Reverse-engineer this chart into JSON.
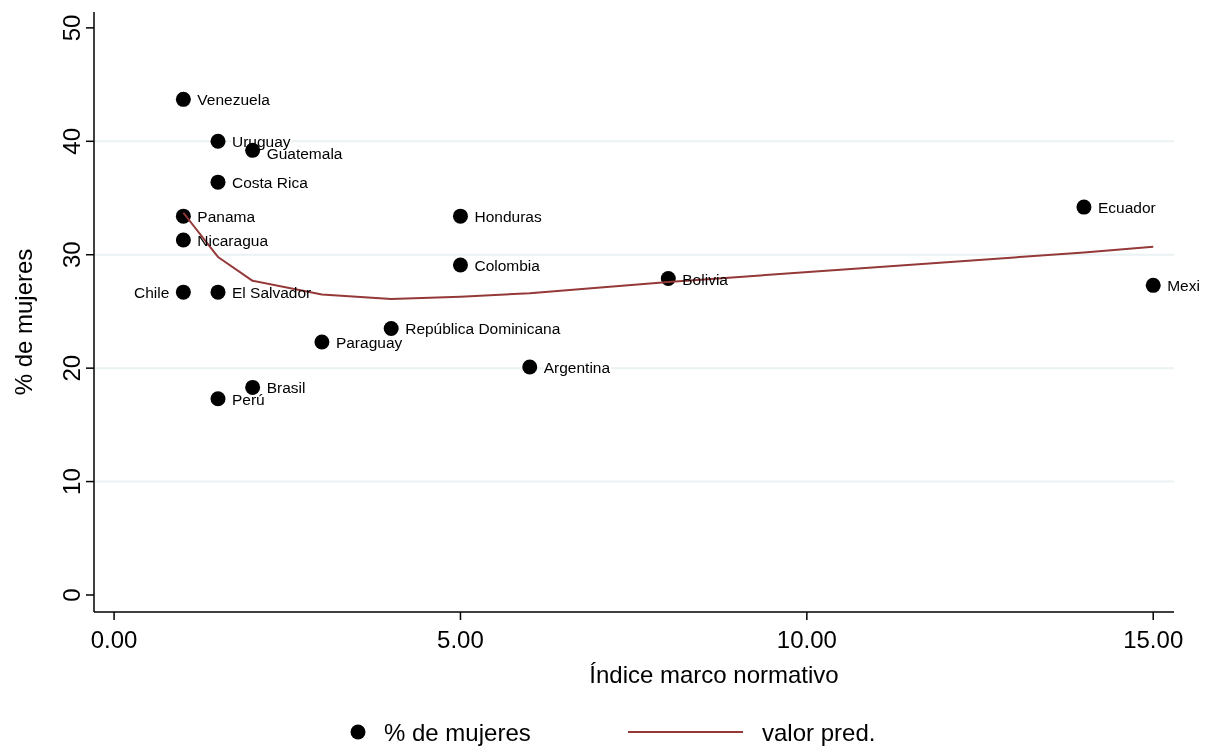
{
  "chart_data": {
    "type": "scatter",
    "xlabel": "Índice marco normativo",
    "ylabel": "% de mujeres",
    "xlim": [
      -0.29,
      15.3
    ],
    "ylim": [
      -1.5,
      51.4
    ],
    "xticks": [
      {
        "value": 0,
        "label": "0.00"
      },
      {
        "value": 5,
        "label": "5.00"
      },
      {
        "value": 10,
        "label": "10.00"
      },
      {
        "value": 15,
        "label": "15.00"
      }
    ],
    "yticks": [
      0,
      10,
      20,
      30,
      40,
      50
    ],
    "grid": "y",
    "legend": "bottom",
    "series": [
      {
        "name": "% de mujeres",
        "color": "#000000",
        "marker": "circle",
        "x": [
          1,
          1.5,
          2,
          1.5,
          1,
          1,
          1,
          1.5,
          3,
          4,
          6,
          2,
          1.5,
          5,
          5,
          8,
          14,
          15
        ],
        "values": [
          43.7,
          40.0,
          39.2,
          36.4,
          33.4,
          31.3,
          26.7,
          26.7,
          22.3,
          23.5,
          20.1,
          18.3,
          17.3,
          33.4,
          29.1,
          27.9,
          34.2,
          27.3
        ]
      },
      {
        "name": "valor pred.",
        "type": "line",
        "color": "#943838",
        "line_style": "solid",
        "x": [
          1,
          1.5,
          2,
          3,
          4,
          5,
          6,
          8,
          14,
          15
        ],
        "values": [
          33.7,
          29.8,
          27.7,
          26.5,
          26.1,
          26.3,
          26.6,
          27.6,
          30.2,
          30.7
        ]
      }
    ],
    "annotations": [
      {
        "text": "Venezuela",
        "x": 1,
        "y": 43.7
      },
      {
        "text": "Uruguay",
        "x": 1.5,
        "y": 40.0
      },
      {
        "text": "Guatemala",
        "x": 2,
        "y": 39.2
      },
      {
        "text": "Costa Rica",
        "x": 1.5,
        "y": 36.4
      },
      {
        "text": "Panama",
        "x": 1,
        "y": 33.4
      },
      {
        "text": "Nicaragua",
        "x": 1,
        "y": 31.3
      },
      {
        "text": "Chile",
        "x": 1,
        "y": 26.7
      },
      {
        "text": "El Salvador",
        "x": 1.5,
        "y": 26.7
      },
      {
        "text": "Paraguay",
        "x": 3,
        "y": 22.3
      },
      {
        "text": "República Dominicana",
        "x": 4,
        "y": 23.5
      },
      {
        "text": "Argentina",
        "x": 6,
        "y": 20.1
      },
      {
        "text": "Brasil",
        "x": 2,
        "y": 18.3
      },
      {
        "text": "Perú",
        "x": 1.5,
        "y": 17.3
      },
      {
        "text": "Honduras",
        "x": 5,
        "y": 33.4
      },
      {
        "text": "Colombia",
        "x": 5,
        "y": 29.1
      },
      {
        "text": "Bolivia",
        "x": 8,
        "y": 27.9
      },
      {
        "text": "Ecuador",
        "x": 14,
        "y": 34.2
      },
      {
        "text": "Mexi",
        "x": 15,
        "y": 27.3
      }
    ]
  }
}
